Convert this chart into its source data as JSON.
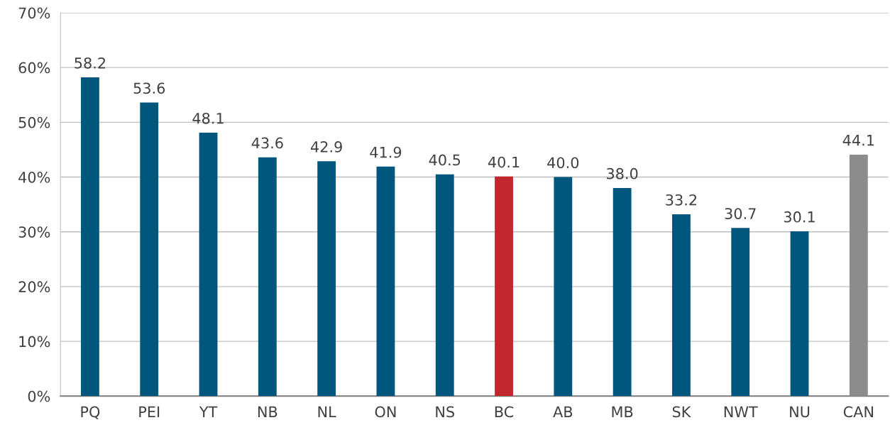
{
  "chart_data": {
    "type": "bar",
    "categories": [
      "PQ",
      "PEI",
      "YT",
      "NB",
      "NL",
      "ON",
      "NS",
      "BC",
      "AB",
      "MB",
      "SK",
      "NWT",
      "NU",
      "CAN"
    ],
    "values": [
      58.2,
      53.6,
      48.1,
      43.6,
      42.9,
      41.9,
      40.5,
      40.1,
      40.0,
      38.0,
      33.2,
      30.7,
      30.1,
      44.1
    ],
    "value_labels": [
      "58.2",
      "53.6",
      "48.1",
      "43.6",
      "42.9",
      "41.9",
      "40.5",
      "40.1",
      "40.0",
      "38.0",
      "33.2",
      "30.7",
      "30.1",
      "44.1"
    ],
    "colors": [
      "#00567d",
      "#00567d",
      "#00567d",
      "#00567d",
      "#00567d",
      "#00567d",
      "#00567d",
      "#c1272d",
      "#00567d",
      "#00567d",
      "#00567d",
      "#00567d",
      "#00567d",
      "#8c8c8c"
    ],
    "ylim": [
      0,
      70
    ],
    "yticks": [
      {
        "value": 0,
        "label": "0%"
      },
      {
        "value": 10,
        "label": "10%"
      },
      {
        "value": 20,
        "label": "20%"
      },
      {
        "value": 30,
        "label": "30%"
      },
      {
        "value": 40,
        "label": "40%"
      },
      {
        "value": 50,
        "label": "50%"
      },
      {
        "value": 60,
        "label": "60%"
      },
      {
        "value": 70,
        "label": "70%"
      }
    ],
    "grid": "y"
  }
}
